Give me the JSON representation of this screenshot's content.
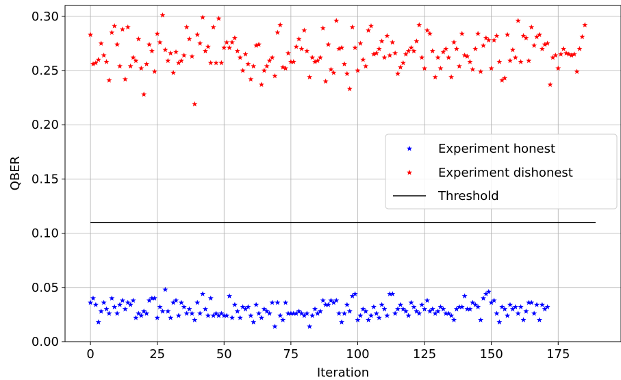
{
  "chart_data": {
    "type": "scatter",
    "title": "",
    "xlabel": "Iteration",
    "ylabel": "QBER",
    "xlim": [
      -9.5,
      198.5
    ],
    "ylim": [
      0.0,
      0.31
    ],
    "xticks": [
      0,
      25,
      50,
      75,
      100,
      125,
      150,
      175
    ],
    "xtick_labels": [
      "0",
      "25",
      "50",
      "75",
      "100",
      "125",
      "150",
      "175"
    ],
    "yticks": [
      0.0,
      0.05,
      0.1,
      0.15,
      0.2,
      0.25,
      0.3
    ],
    "ytick_labels": [
      "0.00",
      "0.05",
      "0.10",
      "0.15",
      "0.20",
      "0.25",
      "0.30"
    ],
    "grid": true,
    "legend_position": "center-right",
    "series": [
      {
        "name": "Experiment honest",
        "marker": "star",
        "color": "#0000ff",
        "x_start": 0,
        "values": [
          0.036,
          0.04,
          0.034,
          0.018,
          0.028,
          0.036,
          0.03,
          0.026,
          0.04,
          0.032,
          0.026,
          0.034,
          0.038,
          0.03,
          0.036,
          0.034,
          0.038,
          0.022,
          0.026,
          0.024,
          0.028,
          0.026,
          0.038,
          0.04,
          0.04,
          0.022,
          0.032,
          0.028,
          0.048,
          0.028,
          0.022,
          0.036,
          0.038,
          0.024,
          0.036,
          0.032,
          0.026,
          0.03,
          0.026,
          0.02,
          0.036,
          0.026,
          0.044,
          0.03,
          0.024,
          0.04,
          0.024,
          0.026,
          0.024,
          0.026,
          0.024,
          0.024,
          0.042,
          0.022,
          0.034,
          0.028,
          0.022,
          0.032,
          0.03,
          0.032,
          0.024,
          0.018,
          0.034,
          0.026,
          0.022,
          0.03,
          0.028,
          0.026,
          0.036,
          0.014,
          0.036,
          0.024,
          0.02,
          0.036,
          0.026,
          0.026,
          0.026,
          0.026,
          0.028,
          0.026,
          0.024,
          0.026,
          0.014,
          0.024,
          0.03,
          0.026,
          0.028,
          0.038,
          0.034,
          0.034,
          0.038,
          0.036,
          0.038,
          0.026,
          0.018,
          0.026,
          0.034,
          0.028,
          0.042,
          0.044,
          0.02,
          0.024,
          0.03,
          0.028,
          0.02,
          0.024,
          0.032,
          0.026,
          0.022,
          0.034,
          0.03,
          0.024,
          0.044,
          0.044,
          0.026,
          0.03,
          0.034,
          0.03,
          0.028,
          0.024,
          0.036,
          0.032,
          0.028,
          0.026,
          0.034,
          0.03,
          0.038,
          0.028,
          0.03,
          0.026,
          0.028,
          0.032,
          0.03,
          0.026,
          0.026,
          0.024,
          0.02,
          0.03,
          0.032,
          0.032,
          0.042,
          0.03,
          0.03,
          0.036,
          0.034,
          0.032,
          0.02,
          0.04,
          0.044,
          0.046,
          0.036,
          0.038,
          0.026,
          0.018,
          0.032,
          0.03,
          0.024,
          0.034,
          0.03,
          0.032,
          0.026,
          0.032,
          0.02,
          0.028,
          0.036,
          0.036,
          0.026,
          0.034,
          0.02,
          0.034,
          0.03,
          0.032
        ]
      },
      {
        "name": "Experiment dishonest",
        "marker": "star",
        "color": "#ff0000",
        "x_start": 0,
        "values": [
          0.283,
          0.256,
          0.257,
          0.26,
          0.275,
          0.264,
          0.258,
          0.241,
          0.285,
          0.291,
          0.274,
          0.254,
          0.288,
          0.242,
          0.29,
          0.254,
          0.262,
          0.259,
          0.279,
          0.252,
          0.228,
          0.256,
          0.274,
          0.268,
          0.249,
          0.284,
          0.276,
          0.301,
          0.269,
          0.259,
          0.266,
          0.248,
          0.267,
          0.257,
          0.259,
          0.264,
          0.29,
          0.279,
          0.263,
          0.219,
          0.283,
          0.275,
          0.299,
          0.268,
          0.272,
          0.257,
          0.29,
          0.257,
          0.298,
          0.257,
          0.271,
          0.276,
          0.271,
          0.276,
          0.28,
          0.268,
          0.262,
          0.25,
          0.265,
          0.256,
          0.242,
          0.254,
          0.273,
          0.274,
          0.237,
          0.25,
          0.254,
          0.259,
          0.262,
          0.245,
          0.285,
          0.292,
          0.253,
          0.252,
          0.266,
          0.258,
          0.258,
          0.272,
          0.279,
          0.27,
          0.287,
          0.268,
          0.244,
          0.262,
          0.258,
          0.259,
          0.262,
          0.289,
          0.24,
          0.274,
          0.251,
          0.248,
          0.296,
          0.27,
          0.271,
          0.256,
          0.247,
          0.233,
          0.29,
          0.271,
          0.25,
          0.275,
          0.26,
          0.254,
          0.287,
          0.291,
          0.265,
          0.266,
          0.27,
          0.277,
          0.262,
          0.282,
          0.264,
          0.276,
          0.266,
          0.247,
          0.253,
          0.257,
          0.265,
          0.268,
          0.271,
          0.268,
          0.277,
          0.292,
          0.262,
          0.252,
          0.287,
          0.284,
          0.268,
          0.244,
          0.262,
          0.252,
          0.267,
          0.27,
          0.262,
          0.244,
          0.276,
          0.27,
          0.254,
          0.284,
          0.264,
          0.263,
          0.258,
          0.251,
          0.27,
          0.284,
          0.249,
          0.273,
          0.28,
          0.278,
          0.252,
          0.278,
          0.282,
          0.258,
          0.241,
          0.243,
          0.283,
          0.259,
          0.269,
          0.262,
          0.296,
          0.258,
          0.282,
          0.28,
          0.259,
          0.29,
          0.273,
          0.281,
          0.283,
          0.27,
          0.274,
          0.275,
          0.237,
          0.262,
          0.264,
          0.252,
          0.265,
          0.27,
          0.266,
          0.265,
          0.264,
          0.265,
          0.249,
          0.27,
          0.281,
          0.292
        ]
      },
      {
        "name": "Threshold",
        "type": "line",
        "color": "#000000",
        "x": [
          0,
          189
        ],
        "values": [
          0.11,
          0.11
        ]
      }
    ]
  }
}
